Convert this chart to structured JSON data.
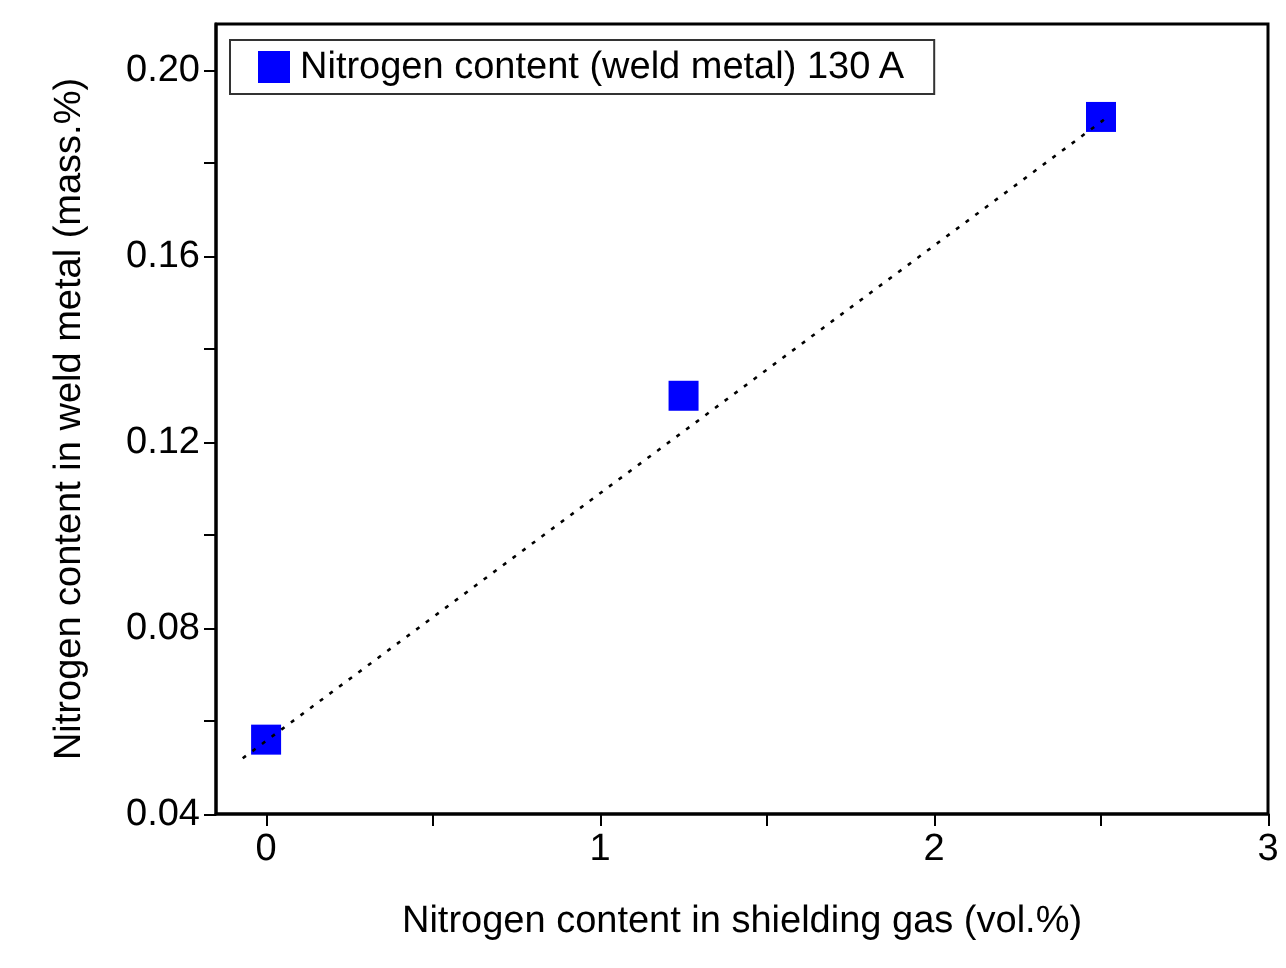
{
  "chart_data": {
    "type": "scatter",
    "xlabel": "Nitrogen content in shielding gas (vol.%)",
    "ylabel": "Nitrogen content in weld metal (mass.%)",
    "x": [
      0,
      1.25,
      2.5
    ],
    "series": [
      {
        "name": "Nitrogen content (weld metal) 130 A",
        "color": "#0000ff",
        "values": [
          0.056,
          0.13,
          0.19
        ],
        "marker": "square"
      },
      {
        "type": "line",
        "color": "#000000",
        "x": [
          -0.07,
          2.52
        ],
        "values": [
          0.052,
          0.19
        ],
        "marker": "none",
        "line_style": "dotted"
      }
    ],
    "xlim": [
      -0.15,
      3
    ],
    "xticks": [
      0,
      {
        "value": 0.5,
        "label": null
      },
      1,
      {
        "value": 1.5,
        "label": null
      },
      2,
      {
        "value": 2.5,
        "label": null
      },
      3
    ],
    "ylim": [
      0.04,
      0.21
    ],
    "yticks": [
      0.04,
      {
        "value": 0.06,
        "label": null
      },
      0.08,
      {
        "value": 0.1,
        "label": null
      },
      0.12,
      {
        "value": 0.14,
        "label": null
      },
      0.16,
      {
        "value": 0.18,
        "label": null
      },
      {
        "value": 0.2,
        "label": "0.20"
      }
    ],
    "legend": "top",
    "grid": false
  }
}
